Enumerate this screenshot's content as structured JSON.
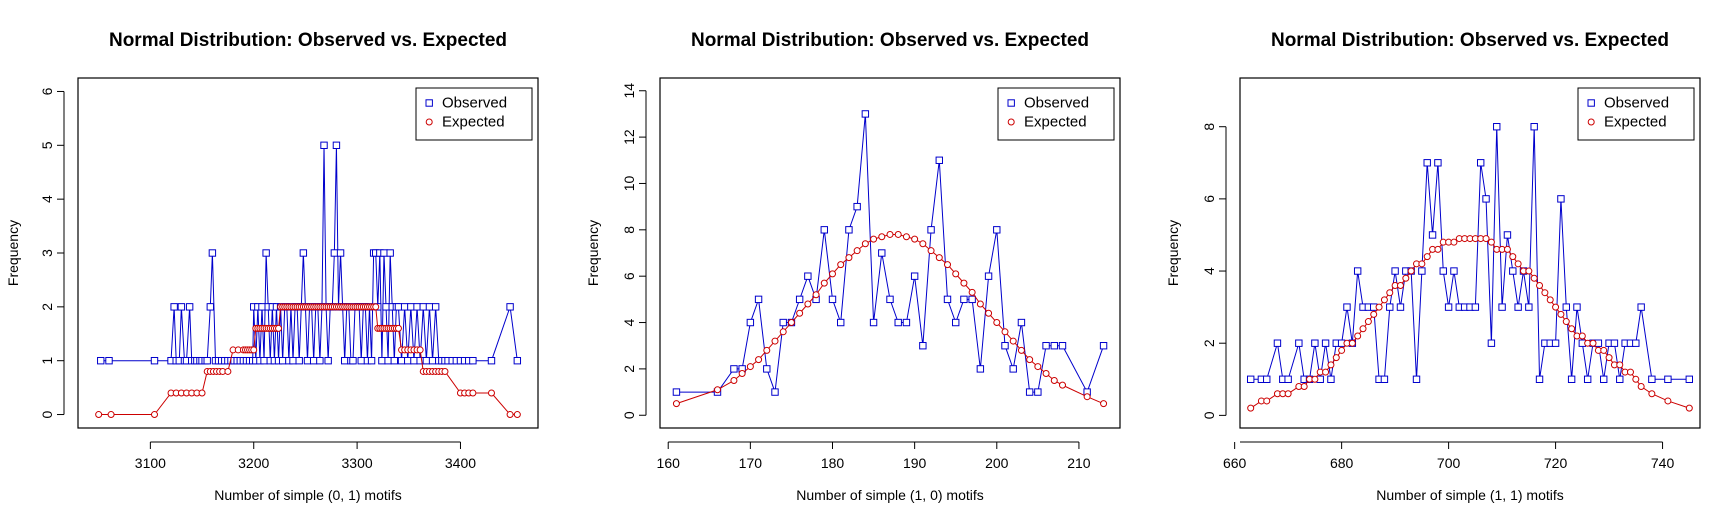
{
  "figure": {
    "background": "#ffffff"
  },
  "chart_data": [
    {
      "type": "line",
      "title": "Normal Distribution: Observed vs. Expected",
      "xlabel": "Number of simple (0, 1) motifs",
      "ylabel": "Frequency",
      "xlim": [
        3030,
        3475
      ],
      "ylim": [
        -0.25,
        6.25
      ],
      "xticks": [
        3100,
        3200,
        3300,
        3400
      ],
      "yticks": [
        0,
        1,
        2,
        3,
        4,
        5,
        6
      ],
      "legend": {
        "position": "top-right",
        "entries": [
          "Observed",
          "Expected"
        ]
      },
      "colors": {
        "observed": "#0000cc",
        "expected": "#cc0000"
      },
      "series": [
        {
          "name": "Observed",
          "marker": "square",
          "x": [
            3052,
            3060,
            3104,
            3120,
            3123,
            3125,
            3128,
            3130,
            3133,
            3135,
            3138,
            3140,
            3143,
            3145,
            3148,
            3150,
            3153,
            3155,
            3158,
            3160,
            3163,
            3166,
            3169,
            3172,
            3175,
            3178,
            3181,
            3184,
            3187,
            3190,
            3193,
            3196,
            3199,
            3200,
            3202,
            3204,
            3206,
            3208,
            3210,
            3212,
            3214,
            3216,
            3218,
            3220,
            3222,
            3224,
            3226,
            3228,
            3230,
            3232,
            3234,
            3236,
            3238,
            3240,
            3242,
            3244,
            3246,
            3248,
            3250,
            3252,
            3254,
            3256,
            3258,
            3260,
            3262,
            3264,
            3266,
            3268,
            3270,
            3272,
            3274,
            3276,
            3278,
            3280,
            3282,
            3284,
            3286,
            3288,
            3290,
            3292,
            3294,
            3296,
            3298,
            3300,
            3302,
            3304,
            3306,
            3308,
            3310,
            3312,
            3314,
            3316,
            3318,
            3320,
            3322,
            3324,
            3326,
            3328,
            3330,
            3332,
            3334,
            3336,
            3338,
            3340,
            3343,
            3346,
            3349,
            3352,
            3355,
            3358,
            3361,
            3364,
            3367,
            3370,
            3373,
            3376,
            3379,
            3382,
            3385,
            3388,
            3392,
            3396,
            3400,
            3404,
            3408,
            3412,
            3430,
            3448,
            3455
          ],
          "y": [
            1,
            1,
            1,
            1,
            2,
            1,
            1,
            2,
            1,
            1,
            2,
            1,
            1,
            1,
            1,
            1,
            1,
            1,
            2,
            3,
            1,
            1,
            1,
            1,
            1,
            1,
            1,
            1,
            1,
            1,
            1,
            1,
            1,
            2,
            1,
            2,
            1,
            2,
            1,
            3,
            2,
            1,
            2,
            1,
            2,
            1,
            2,
            1,
            2,
            2,
            1,
            2,
            1,
            2,
            2,
            1,
            2,
            3,
            2,
            1,
            2,
            2,
            1,
            2,
            2,
            1,
            2,
            5,
            2,
            1,
            2,
            2,
            3,
            5,
            2,
            3,
            2,
            1,
            2,
            2,
            1,
            1,
            2,
            2,
            2,
            1,
            2,
            2,
            1,
            2,
            1,
            3,
            3,
            2,
            3,
            1,
            3,
            2,
            1,
            3,
            2,
            1,
            2,
            2,
            1,
            2,
            1,
            2,
            1,
            2,
            1,
            2,
            1,
            2,
            1,
            2,
            1,
            1,
            1,
            1,
            1,
            1,
            1,
            1,
            1,
            1,
            1,
            2,
            1
          ]
        },
        {
          "name": "Expected",
          "marker": "circle",
          "x": [
            3050,
            3062,
            3104,
            3120,
            3125,
            3130,
            3135,
            3140,
            3145,
            3150,
            3155,
            3158,
            3161,
            3164,
            3167,
            3170,
            3175,
            3180,
            3185,
            3190,
            3192,
            3194,
            3196,
            3198,
            3200,
            3202,
            3204,
            3206,
            3208,
            3210,
            3212,
            3214,
            3216,
            3218,
            3220,
            3222,
            3224,
            3226,
            3228,
            3230,
            3232,
            3234,
            3236,
            3238,
            3240,
            3242,
            3244,
            3246,
            3248,
            3250,
            3252,
            3254,
            3256,
            3258,
            3260,
            3262,
            3264,
            3266,
            3268,
            3270,
            3272,
            3274,
            3276,
            3278,
            3280,
            3282,
            3284,
            3286,
            3288,
            3290,
            3292,
            3294,
            3296,
            3298,
            3300,
            3302,
            3304,
            3306,
            3308,
            3310,
            3312,
            3314,
            3316,
            3318,
            3320,
            3322,
            3324,
            3326,
            3328,
            3330,
            3332,
            3334,
            3336,
            3338,
            3340,
            3343,
            3346,
            3349,
            3352,
            3355,
            3358,
            3361,
            3364,
            3367,
            3370,
            3373,
            3376,
            3379,
            3382,
            3385,
            3400,
            3404,
            3408,
            3412,
            3430,
            3448,
            3455
          ],
          "y": [
            0,
            0,
            0,
            0.4,
            0.4,
            0.4,
            0.4,
            0.4,
            0.4,
            0.4,
            0.8,
            0.8,
            0.8,
            0.8,
            0.8,
            0.8,
            0.8,
            1.2,
            1.2,
            1.2,
            1.2,
            1.2,
            1.2,
            1.2,
            1.2,
            1.6,
            1.6,
            1.6,
            1.6,
            1.6,
            1.6,
            1.6,
            1.6,
            1.6,
            1.6,
            1.6,
            1.6,
            2.0,
            2.0,
            2.0,
            2.0,
            2.0,
            2.0,
            2.0,
            2.0,
            2.0,
            2.0,
            2.0,
            2.0,
            2.0,
            2.0,
            2.0,
            2.0,
            2.0,
            2.0,
            2.0,
            2.0,
            2.0,
            2.0,
            2.0,
            2.0,
            2.0,
            2.0,
            2.0,
            2.0,
            2.0,
            2.0,
            2.0,
            2.0,
            2.0,
            2.0,
            2.0,
            2.0,
            2.0,
            2.0,
            2.0,
            2.0,
            2.0,
            2.0,
            2.0,
            2.0,
            2.0,
            2.0,
            2.0,
            1.6,
            1.6,
            1.6,
            1.6,
            1.6,
            1.6,
            1.6,
            1.6,
            1.6,
            1.6,
            1.6,
            1.2,
            1.2,
            1.2,
            1.2,
            1.2,
            1.2,
            1.2,
            0.8,
            0.8,
            0.8,
            0.8,
            0.8,
            0.8,
            0.8,
            0.8,
            0.4,
            0.4,
            0.4,
            0.4,
            0.4,
            0,
            0
          ]
        }
      ]
    },
    {
      "type": "line",
      "title": "Normal Distribution: Observed vs. Expected",
      "xlabel": "Number of simple (1, 0) motifs",
      "ylabel": "Frequency",
      "xlim": [
        159,
        215
      ],
      "ylim": [
        -0.55,
        14.55
      ],
      "xticks": [
        160,
        170,
        180,
        190,
        200,
        210
      ],
      "yticks": [
        0,
        2,
        4,
        6,
        8,
        10,
        12,
        14
      ],
      "legend": {
        "position": "top-right",
        "entries": [
          "Observed",
          "Expected"
        ]
      },
      "colors": {
        "observed": "#0000cc",
        "expected": "#cc0000"
      },
      "series": [
        {
          "name": "Observed",
          "marker": "square",
          "x": [
            161,
            166,
            168,
            169,
            170,
            171,
            172,
            173,
            174,
            175,
            176,
            177,
            178,
            179,
            180,
            181,
            182,
            183,
            184,
            185,
            186,
            187,
            188,
            189,
            190,
            191,
            192,
            193,
            194,
            195,
            196,
            197,
            198,
            199,
            200,
            201,
            202,
            203,
            204,
            205,
            206,
            207,
            208,
            211,
            213
          ],
          "y": [
            1,
            1,
            2,
            2,
            4,
            5,
            2,
            1,
            4,
            4,
            5,
            6,
            5,
            8,
            5,
            4,
            8,
            9,
            13,
            4,
            7,
            5,
            4,
            4,
            6,
            3,
            8,
            11,
            5,
            4,
            5,
            5,
            2,
            6,
            8,
            3,
            2,
            4,
            1,
            1,
            3,
            3,
            3,
            1,
            3
          ]
        },
        {
          "name": "Expected",
          "marker": "circle",
          "x": [
            161,
            166,
            168,
            169,
            170,
            171,
            172,
            173,
            174,
            175,
            176,
            177,
            178,
            179,
            180,
            181,
            182,
            183,
            184,
            185,
            186,
            187,
            188,
            189,
            190,
            191,
            192,
            193,
            194,
            195,
            196,
            197,
            198,
            199,
            200,
            201,
            202,
            203,
            204,
            205,
            206,
            207,
            208,
            211,
            213
          ],
          "y": [
            0.5,
            1.1,
            1.5,
            1.8,
            2.1,
            2.4,
            2.8,
            3.2,
            3.6,
            4.0,
            4.4,
            4.8,
            5.2,
            5.7,
            6.1,
            6.5,
            6.8,
            7.1,
            7.4,
            7.6,
            7.7,
            7.8,
            7.8,
            7.7,
            7.6,
            7.4,
            7.1,
            6.8,
            6.5,
            6.1,
            5.7,
            5.3,
            4.8,
            4.4,
            4.0,
            3.6,
            3.2,
            2.8,
            2.4,
            2.1,
            1.8,
            1.5,
            1.3,
            0.8,
            0.5
          ]
        }
      ]
    },
    {
      "type": "line",
      "title": "Normal Distribution: Observed vs. Expected",
      "xlabel": "Number of simple (1, 1) motifs",
      "ylabel": "Frequency",
      "xlim": [
        661,
        747
      ],
      "ylim": [
        -0.35,
        9.35
      ],
      "xticks": [
        660,
        680,
        700,
        720,
        740
      ],
      "yticks": [
        0,
        2,
        4,
        6,
        8
      ],
      "legend": {
        "position": "top-right",
        "entries": [
          "Observed",
          "Expected"
        ]
      },
      "colors": {
        "observed": "#0000cc",
        "expected": "#cc0000"
      },
      "series": [
        {
          "name": "Observed",
          "marker": "square",
          "x": [
            663,
            665,
            666,
            668,
            669,
            670,
            672,
            673,
            674,
            675,
            676,
            677,
            678,
            679,
            680,
            681,
            682,
            683,
            684,
            685,
            686,
            687,
            688,
            689,
            690,
            691,
            692,
            693,
            694,
            695,
            696,
            697,
            698,
            699,
            700,
            701,
            702,
            703,
            704,
            705,
            706,
            707,
            708,
            709,
            710,
            711,
            712,
            713,
            714,
            715,
            716,
            717,
            718,
            719,
            720,
            721,
            722,
            723,
            724,
            725,
            726,
            727,
            728,
            729,
            730,
            731,
            732,
            733,
            734,
            735,
            736,
            738,
            741,
            745
          ],
          "y": [
            1,
            1,
            1,
            2,
            1,
            1,
            2,
            1,
            1,
            2,
            1,
            2,
            1,
            2,
            2,
            3,
            2,
            4,
            3,
            3,
            3,
            1,
            1,
            3,
            4,
            3,
            4,
            4,
            1,
            4,
            7,
            5,
            7,
            4,
            3,
            4,
            3,
            3,
            3,
            3,
            7,
            6,
            2,
            8,
            3,
            5,
            4,
            3,
            4,
            3,
            8,
            1,
            2,
            2,
            2,
            6,
            3,
            1,
            3,
            2,
            1,
            2,
            2,
            1,
            2,
            2,
            1,
            2,
            2,
            2,
            3,
            1,
            1,
            1
          ]
        },
        {
          "name": "Expected",
          "marker": "circle",
          "x": [
            663,
            665,
            666,
            668,
            669,
            670,
            672,
            673,
            674,
            675,
            676,
            677,
            678,
            679,
            680,
            681,
            682,
            683,
            684,
            685,
            686,
            687,
            688,
            689,
            690,
            691,
            692,
            693,
            694,
            695,
            696,
            697,
            698,
            699,
            700,
            701,
            702,
            703,
            704,
            705,
            706,
            707,
            708,
            709,
            710,
            711,
            712,
            713,
            714,
            715,
            716,
            717,
            718,
            719,
            720,
            721,
            722,
            723,
            724,
            725,
            726,
            727,
            728,
            729,
            730,
            731,
            732,
            733,
            734,
            735,
            736,
            738,
            741,
            745
          ],
          "y": [
            0.2,
            0.4,
            0.4,
            0.6,
            0.6,
            0.6,
            0.8,
            0.8,
            1.0,
            1.0,
            1.2,
            1.2,
            1.4,
            1.6,
            1.8,
            2.0,
            2.0,
            2.2,
            2.4,
            2.6,
            2.8,
            3.0,
            3.2,
            3.4,
            3.6,
            3.6,
            3.8,
            4.0,
            4.2,
            4.2,
            4.4,
            4.6,
            4.6,
            4.8,
            4.8,
            4.8,
            4.9,
            4.9,
            4.9,
            4.9,
            4.9,
            4.9,
            4.8,
            4.6,
            4.6,
            4.6,
            4.4,
            4.2,
            4.0,
            4.0,
            3.8,
            3.6,
            3.4,
            3.2,
            3.0,
            2.8,
            2.6,
            2.4,
            2.2,
            2.2,
            2.0,
            2.0,
            1.8,
            1.8,
            1.6,
            1.4,
            1.4,
            1.2,
            1.2,
            1.0,
            0.8,
            0.6,
            0.4,
            0.2
          ]
        }
      ]
    }
  ]
}
